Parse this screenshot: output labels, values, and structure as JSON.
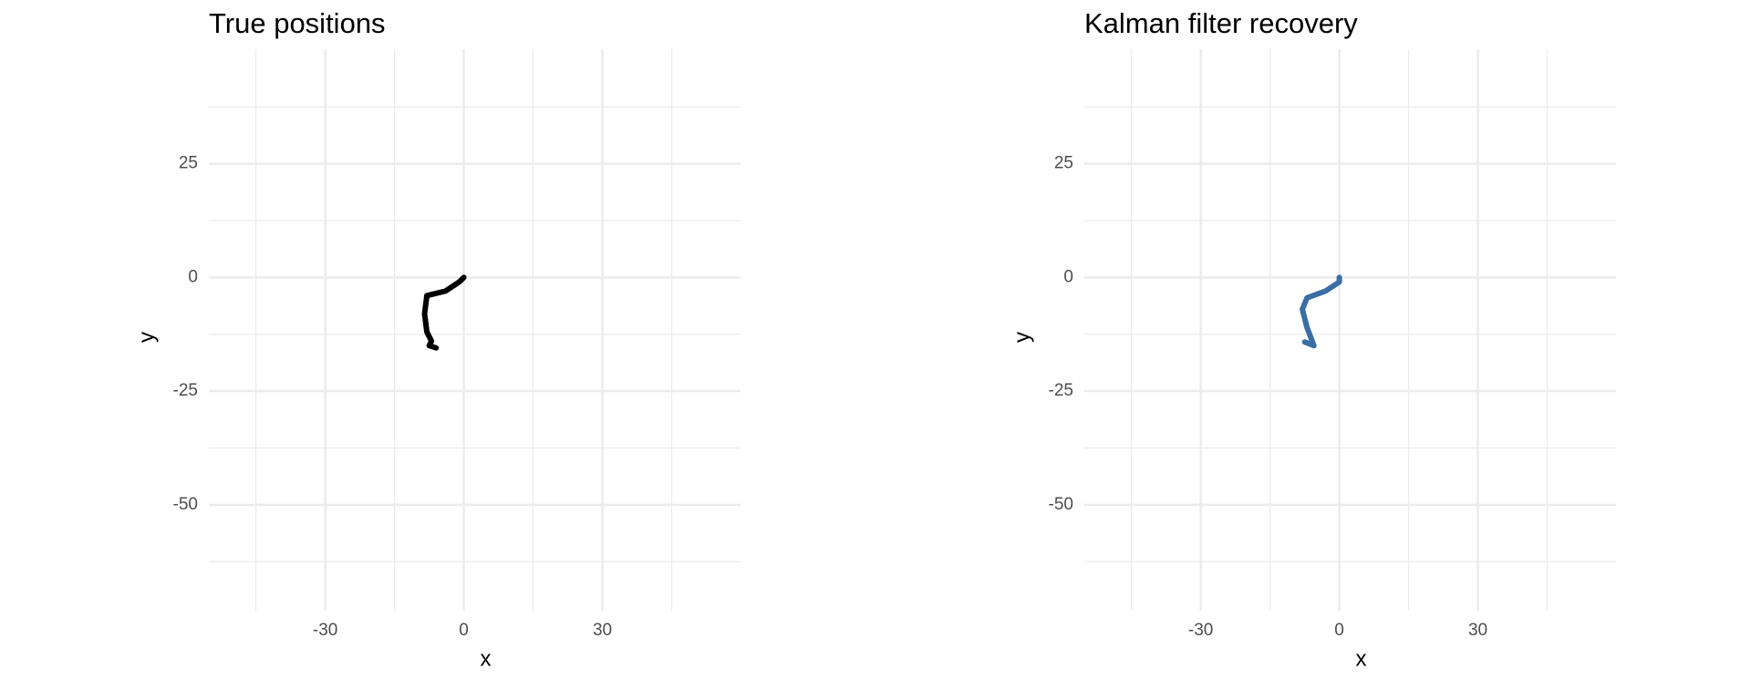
{
  "chart_data": [
    {
      "type": "line",
      "title": "True positions",
      "x_label": "x",
      "y_label": "y",
      "x": [
        0,
        -1,
        -4,
        -8,
        -8.5,
        -8,
        -7,
        -7.5,
        -6
      ],
      "y": [
        0,
        -1,
        -3,
        -4,
        -8,
        -12,
        -14,
        -15,
        -15.5
      ],
      "color": "#000000",
      "xlim": [
        -55.2,
        59.9
      ],
      "ylim": [
        -73.3,
        50.2
      ],
      "xticks": [
        -30,
        0,
        30
      ],
      "yticks": [
        -50,
        -25,
        0,
        25
      ],
      "x_minor_grid": [
        -45,
        -15,
        15,
        45
      ],
      "y_minor_grid": [
        -62.5,
        -37.5,
        -12.5,
        12.5,
        37.5
      ],
      "grid": true
    },
    {
      "type": "line",
      "title": "Kalman filter recovery",
      "x_label": "x",
      "y_label": "y",
      "x": [
        0,
        0,
        -3,
        -7,
        -8,
        -7,
        -5.5,
        -7.5
      ],
      "y": [
        0,
        -1,
        -3,
        -4.5,
        -7,
        -11,
        -15,
        -14.2
      ],
      "color": "#3a6ea5",
      "xlim": [
        -55.2,
        59.9
      ],
      "ylim": [
        -73.3,
        50.2
      ],
      "xticks": [
        -30,
        0,
        30
      ],
      "yticks": [
        -50,
        -25,
        0,
        25
      ],
      "x_minor_grid": [
        -45,
        -15,
        15,
        45
      ],
      "y_minor_grid": [
        -62.5,
        -37.5,
        -12.5,
        12.5,
        37.5
      ],
      "grid": true
    }
  ]
}
